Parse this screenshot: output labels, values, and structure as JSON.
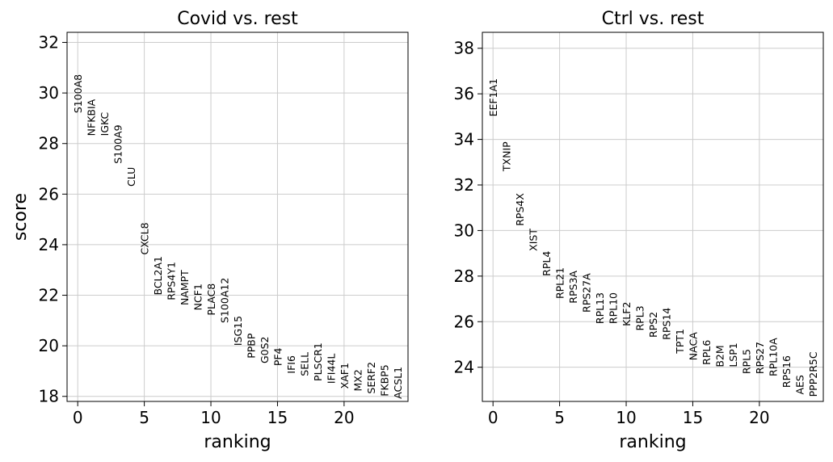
{
  "chart_data": [
    {
      "type": "scatter",
      "title": "Covid vs. rest",
      "xlabel": "ranking",
      "ylabel": "score",
      "xlim": [
        -0.8,
        24.8
      ],
      "ylim": [
        17.8,
        32.4
      ],
      "xticks": [
        0,
        5,
        10,
        15,
        20
      ],
      "yticks": [
        18,
        20,
        22,
        24,
        26,
        28,
        30,
        32
      ],
      "grid": true,
      "genes": [
        "S100A8",
        "NFKBIA",
        "IGKC",
        "S100A9",
        "CLU",
        "CXCL8",
        "BCL2A1",
        "RPS4Y1",
        "NAMPT",
        "NCF1",
        "PLAC8",
        "S100A12",
        "ISG15",
        "PPBP",
        "G0S2",
        "PF4",
        "IFI6",
        "SELL",
        "PLSCR1",
        "IFI44L",
        "XAF1",
        "MX2",
        "SERF2",
        "FKBP5",
        "ACSL1"
      ],
      "x": [
        0,
        1,
        2,
        3,
        4,
        5,
        6,
        7,
        8,
        9,
        10,
        11,
        12,
        13,
        14,
        15,
        16,
        17,
        18,
        19,
        20,
        21,
        22,
        23,
        24
      ],
      "y": [
        29.2,
        28.3,
        28.3,
        27.2,
        26.3,
        23.6,
        22.0,
        21.8,
        21.6,
        21.4,
        21.2,
        20.9,
        20.0,
        19.5,
        19.3,
        19.2,
        18.9,
        18.8,
        18.6,
        18.5,
        18.3,
        18.2,
        18.1,
        18.0,
        17.9
      ]
    },
    {
      "type": "scatter",
      "title": "Ctrl vs. rest",
      "xlabel": "ranking",
      "ylabel": "",
      "xlim": [
        -0.8,
        24.8
      ],
      "ylim": [
        22.5,
        38.7
      ],
      "xticks": [
        0,
        5,
        10,
        15,
        20
      ],
      "yticks": [
        24,
        26,
        28,
        30,
        32,
        34,
        36,
        38
      ],
      "grid": true,
      "genes": [
        "EEF1A1",
        "TXNIP",
        "RPS4X",
        "XIST",
        "RPL4",
        "RPL21",
        "RPS3A",
        "RPS27A",
        "RPL13",
        "RPL10",
        "KLF2",
        "RPL3",
        "RPS2",
        "RPS14",
        "TPT1",
        "NACA",
        "RPL6",
        "B2M",
        "LSP1",
        "RPL5",
        "RPS27",
        "RPL10A",
        "RPS16",
        "AES",
        "PPP2R5C"
      ],
      "x": [
        0,
        1,
        2,
        3,
        4,
        5,
        6,
        7,
        8,
        9,
        10,
        11,
        12,
        13,
        14,
        15,
        16,
        17,
        18,
        19,
        20,
        21,
        22,
        23,
        24
      ],
      "y": [
        35.0,
        32.6,
        30.2,
        29.1,
        28.0,
        27.0,
        26.8,
        26.4,
        25.9,
        25.9,
        25.8,
        25.6,
        25.3,
        25.2,
        24.6,
        24.3,
        24.1,
        24.0,
        24.0,
        23.7,
        23.7,
        23.6,
        23.1,
        22.8,
        22.7
      ]
    }
  ]
}
